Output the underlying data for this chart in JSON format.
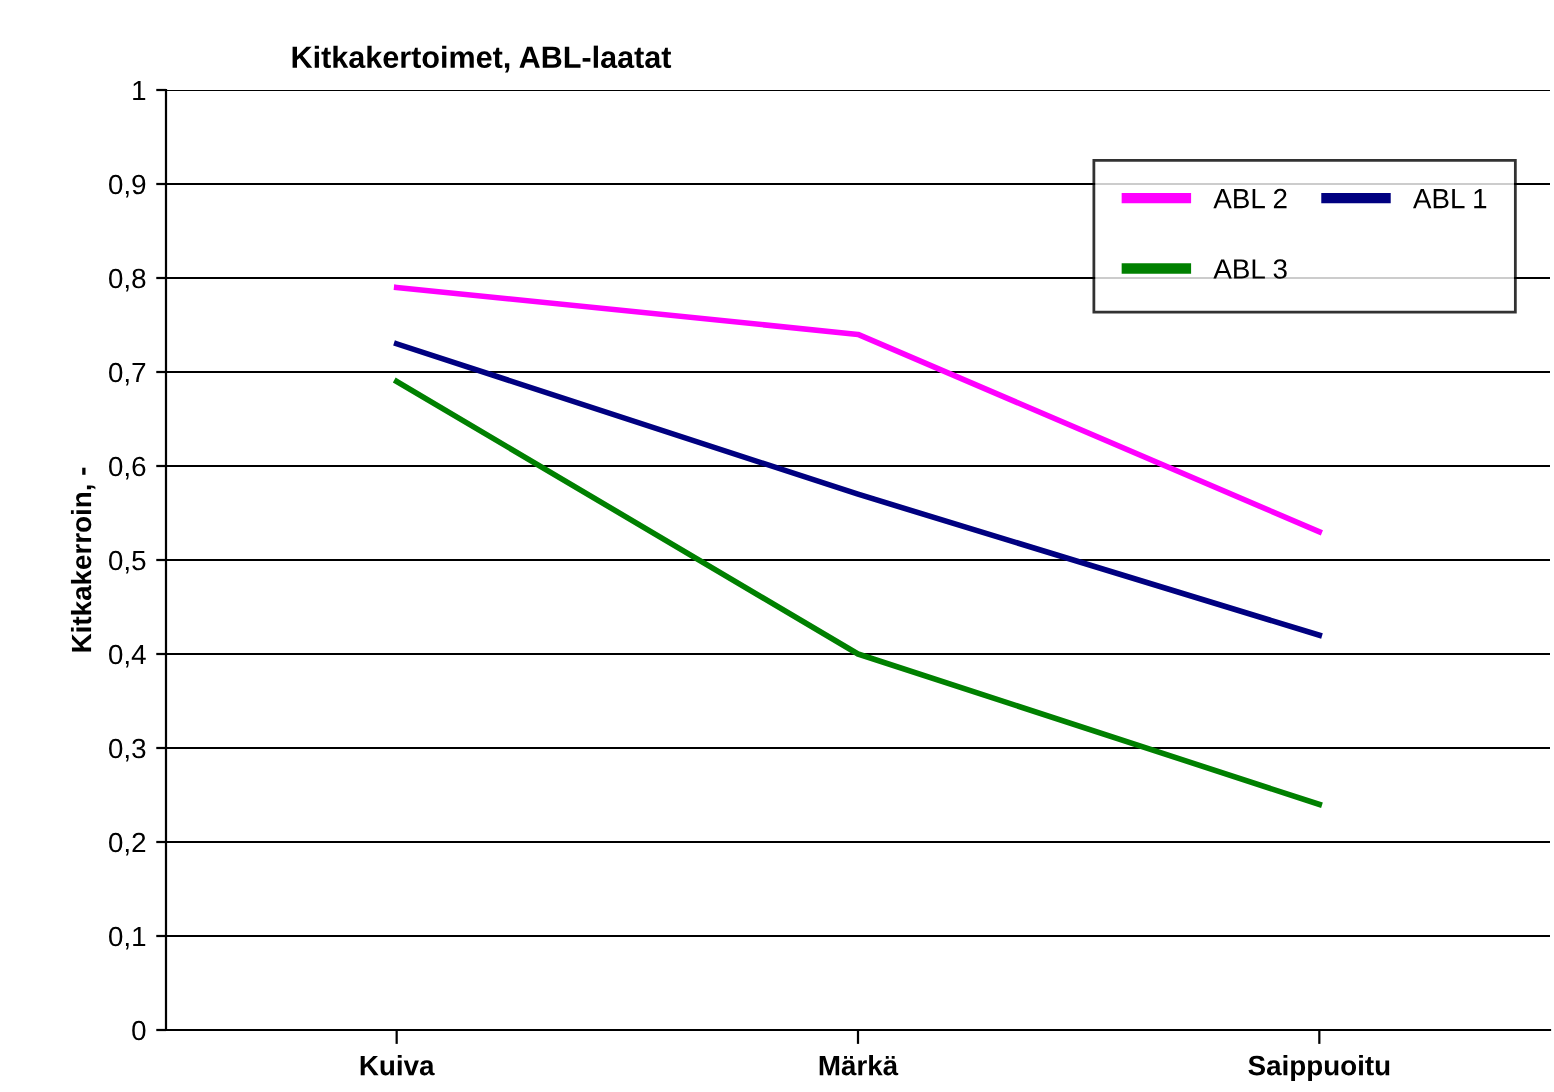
{
  "chart_data": {
    "type": "line",
    "title": "Kitkakertoimet, ABL-laatat",
    "ylabel": "Kitkakerroin, -",
    "categories": [
      "Kuiva",
      "Märkä",
      "Saippuoitu"
    ],
    "series": [
      {
        "name": "ABL 2",
        "color": "#ff00ff",
        "values": [
          0.79,
          0.74,
          0.53
        ]
      },
      {
        "name": "ABL 1",
        "color": "#000080",
        "values": [
          0.73,
          0.57,
          0.42
        ]
      },
      {
        "name": "ABL 3",
        "color": "#008000",
        "values": [
          0.69,
          0.4,
          0.24
        ]
      }
    ],
    "ylim": [
      0,
      1
    ],
    "yticks": [
      {
        "value": 0,
        "label": "0"
      },
      {
        "value": 0.1,
        "label": "0,1"
      },
      {
        "value": 0.2,
        "label": "0,2"
      },
      {
        "value": 0.3,
        "label": "0,3"
      },
      {
        "value": 0.4,
        "label": "0,4"
      },
      {
        "value": 0.5,
        "label": "0,5"
      },
      {
        "value": 0.6,
        "label": "0,6"
      },
      {
        "value": 0.7,
        "label": "0,7"
      },
      {
        "value": 0.8,
        "label": "0,8"
      },
      {
        "value": 0.9,
        "label": "0,9"
      },
      {
        "value": 1,
        "label": "1"
      }
    ],
    "grid": "y",
    "legend": "top right",
    "marker": "none",
    "line_style": "solid"
  }
}
